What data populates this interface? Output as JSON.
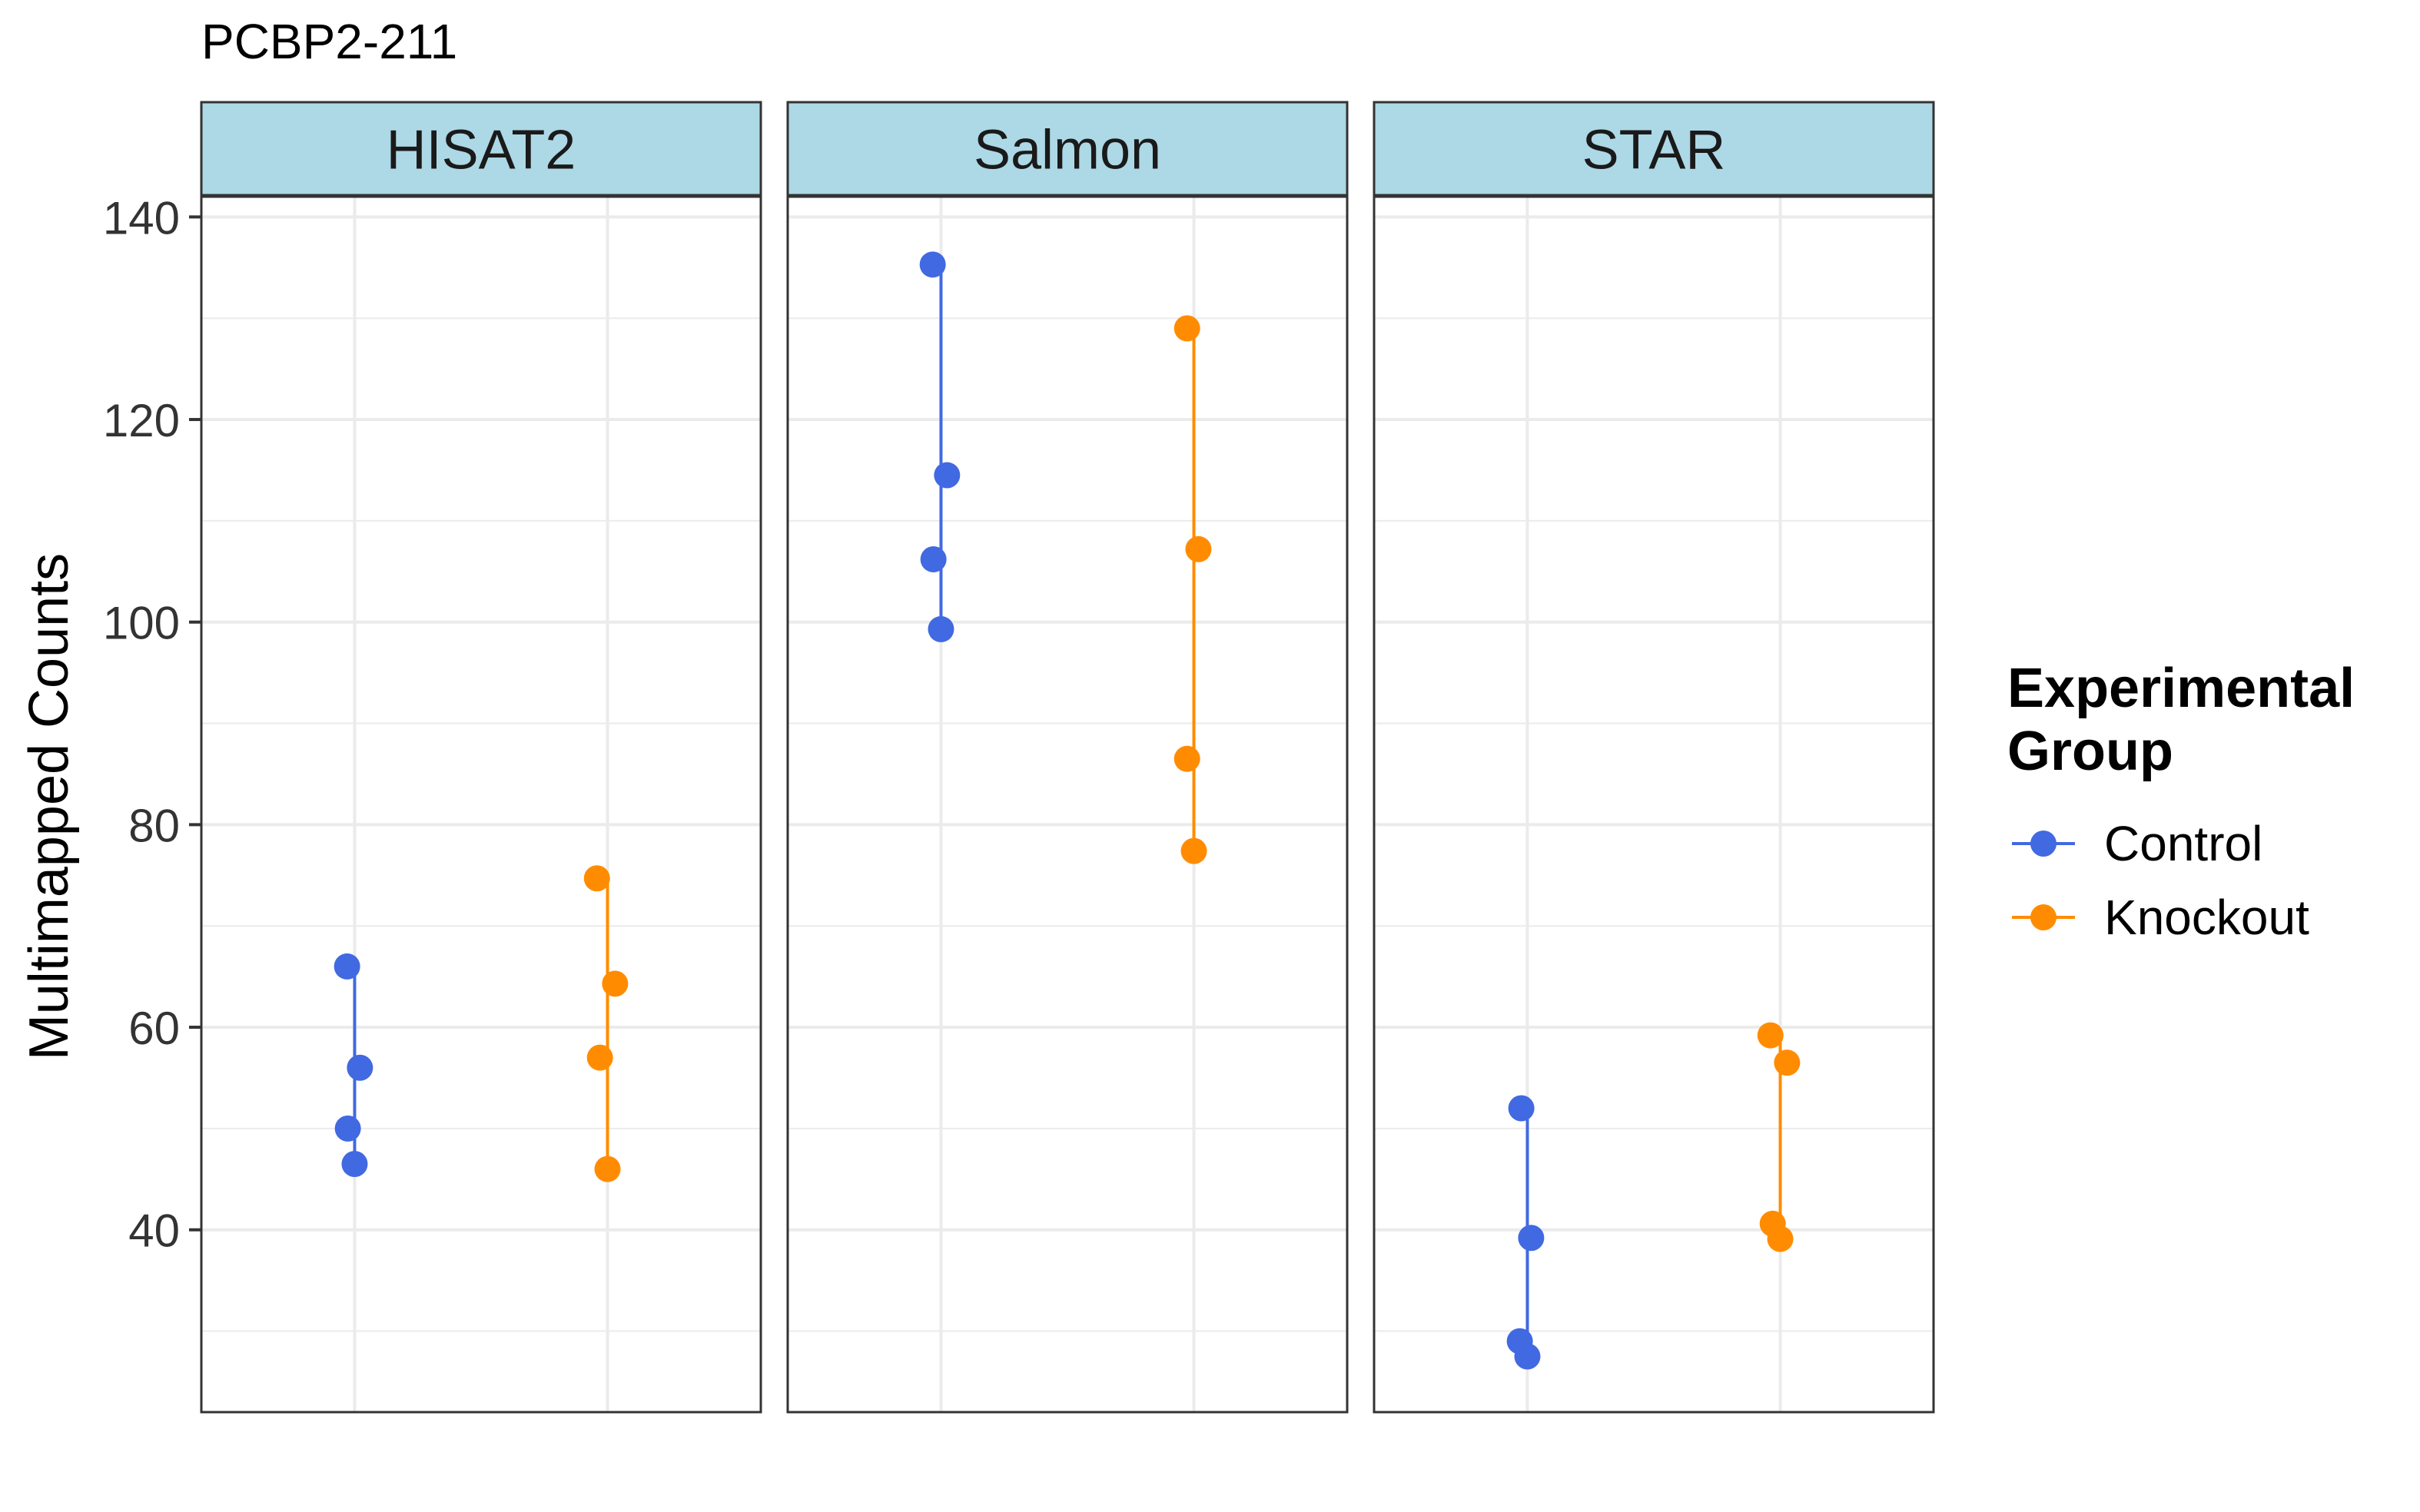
{
  "chart_data": {
    "type": "scatter",
    "title": "PCBP2-211",
    "ylabel": "Multimapped Counts",
    "xlabel": "",
    "ylim": [
      22,
      142
    ],
    "y_ticks": [
      40,
      60,
      80,
      100,
      120,
      140
    ],
    "grid": true,
    "legend": {
      "title_lines": [
        "Experimental",
        "Group"
      ],
      "position": "right",
      "entries": [
        {
          "name": "Control",
          "color": "#4169E1"
        },
        {
          "name": "Knockout",
          "color": "#FF8C00"
        }
      ]
    },
    "group_order": [
      "Control",
      "Knockout"
    ],
    "panels": [
      {
        "name": "HISAT2",
        "series": [
          {
            "name": "Control",
            "color": "#4169E1",
            "values": [
              66,
              50,
              56,
              46.5
            ],
            "jitter": [
              -0.1,
              -0.09,
              0.07,
              0.0
            ]
          },
          {
            "name": "Knockout",
            "color": "#FF8C00",
            "values": [
              74.7,
              57,
              64.3,
              46
            ],
            "jitter": [
              -0.14,
              -0.1,
              0.1,
              0.0
            ]
          }
        ]
      },
      {
        "name": "Salmon",
        "series": [
          {
            "name": "Control",
            "color": "#4169E1",
            "values": [
              135.3,
              106.2,
              114.5,
              99.3
            ],
            "jitter": [
              -0.11,
              -0.1,
              0.08,
              0.0
            ]
          },
          {
            "name": "Knockout",
            "color": "#FF8C00",
            "values": [
              129,
              107.2,
              86.5,
              77.4
            ],
            "jitter": [
              -0.09,
              0.06,
              -0.09,
              0.0
            ]
          }
        ]
      },
      {
        "name": "STAR",
        "series": [
          {
            "name": "Control",
            "color": "#4169E1",
            "values": [
              52,
              39.2,
              29,
              27.5
            ],
            "jitter": [
              -0.08,
              0.05,
              -0.1,
              0.0
            ]
          },
          {
            "name": "Knockout",
            "color": "#FF8C00",
            "values": [
              59.2,
              56.5,
              40.6,
              39.1
            ],
            "jitter": [
              -0.13,
              0.09,
              -0.1,
              0.0
            ]
          }
        ]
      }
    ]
  }
}
